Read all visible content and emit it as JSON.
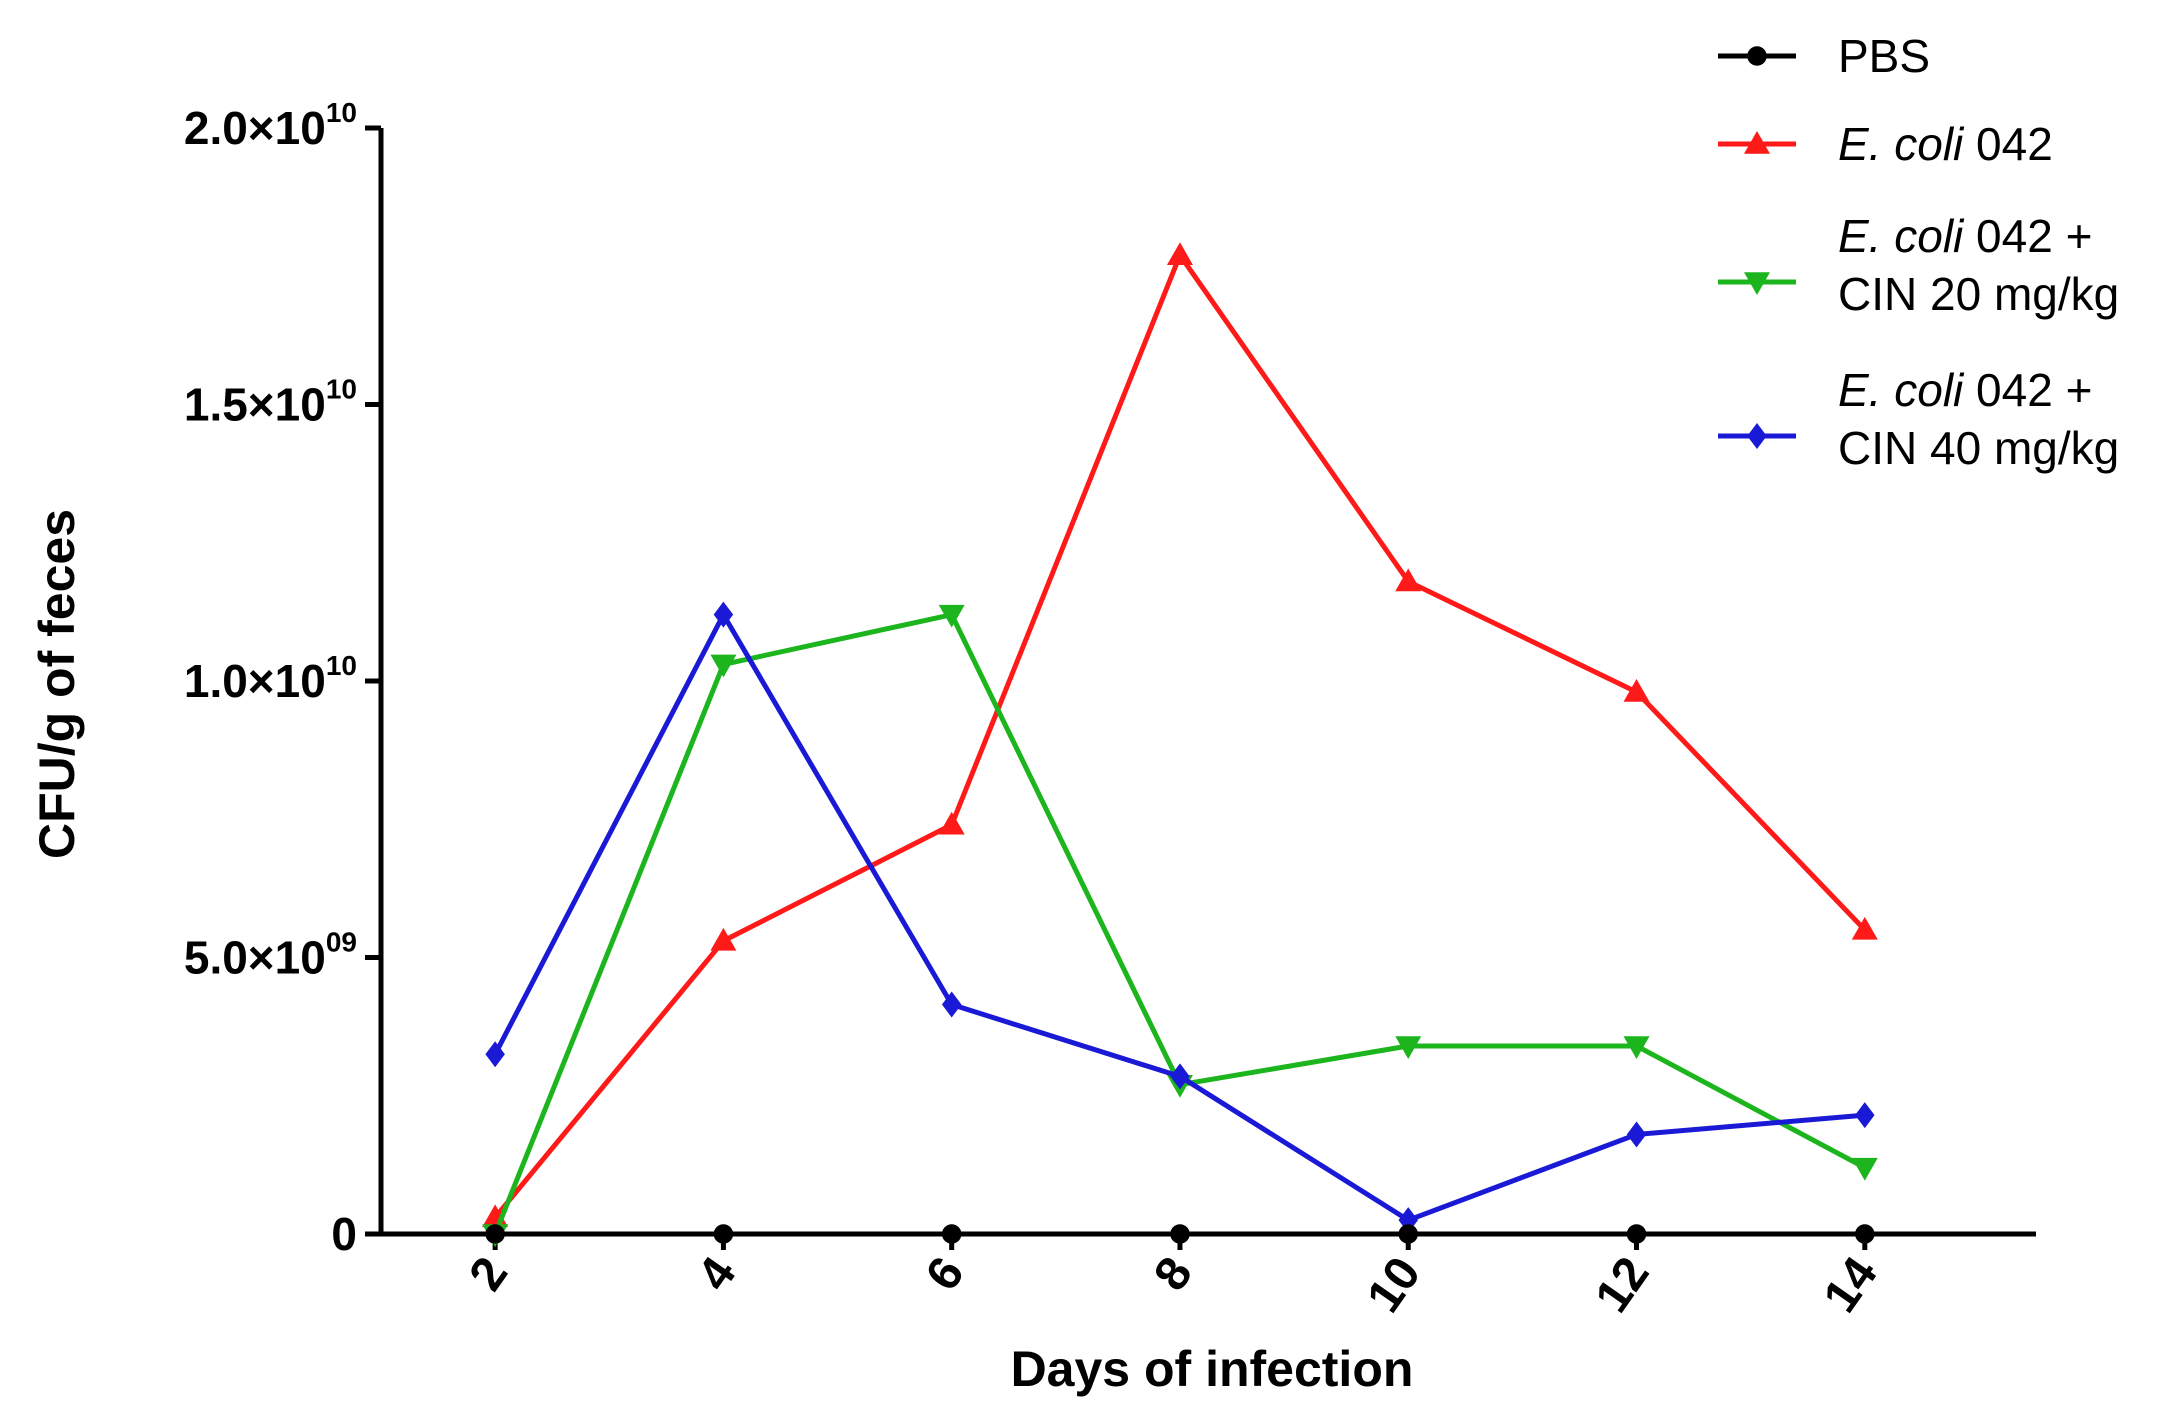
{
  "chart_data": {
    "type": "line",
    "xlabel": "Days of infection",
    "ylabel": "CFU/g of feces",
    "x": [
      2,
      4,
      6,
      8,
      10,
      12,
      14
    ],
    "xlim": [
      1,
      15.5
    ],
    "ylim": [
      0,
      20000000000
    ],
    "y_ticks": [
      {
        "value": 0,
        "mantissa": "0",
        "exponent": ""
      },
      {
        "value": 5000000000,
        "mantissa": "5.0×10",
        "exponent": "09"
      },
      {
        "value": 10000000000,
        "mantissa": "1.0×10",
        "exponent": "10"
      },
      {
        "value": 15000000000,
        "mantissa": "1.5×10",
        "exponent": "10"
      },
      {
        "value": 20000000000,
        "mantissa": "2.0×10",
        "exponent": "10"
      }
    ],
    "grid": false,
    "legend_position": "top-right",
    "series": [
      {
        "name": "PBS",
        "legend_lines": [
          {
            "italic": "",
            "plain": "PBS"
          }
        ],
        "color": "#000000",
        "marker": "circle",
        "values": [
          0,
          0,
          0,
          0,
          0,
          0,
          0
        ]
      },
      {
        "name": "E. coli 042",
        "legend_lines": [
          {
            "italic": "E. coli",
            "plain": " 042"
          }
        ],
        "color": "#ff1a1a",
        "marker": "triangle-up",
        "values": [
          300000000,
          5300000000,
          7400000000,
          17700000000,
          11800000000,
          9800000000,
          5500000000
        ]
      },
      {
        "name": "E. coli 042 + CIN 20 mg/kg",
        "legend_lines": [
          {
            "italic": "E. coli",
            "plain": " 042 +"
          },
          {
            "italic": "",
            "plain": "CIN 20 mg/kg"
          }
        ],
        "color": "#1db51d",
        "marker": "triangle-down",
        "values": [
          0,
          10300000000,
          11200000000,
          2700000000,
          3400000000,
          3400000000,
          1200000000
        ]
      },
      {
        "name": "E. coli 042 + CIN 40 mg/kg",
        "legend_lines": [
          {
            "italic": "E. coli",
            "plain": " 042 +"
          },
          {
            "italic": "",
            "plain": "CIN 40 mg/kg"
          }
        ],
        "color": "#1a1ad6",
        "marker": "diamond",
        "values": [
          3250000000,
          11200000000,
          4150000000,
          2850000000,
          250000000,
          1800000000,
          2150000000
        ]
      }
    ]
  }
}
